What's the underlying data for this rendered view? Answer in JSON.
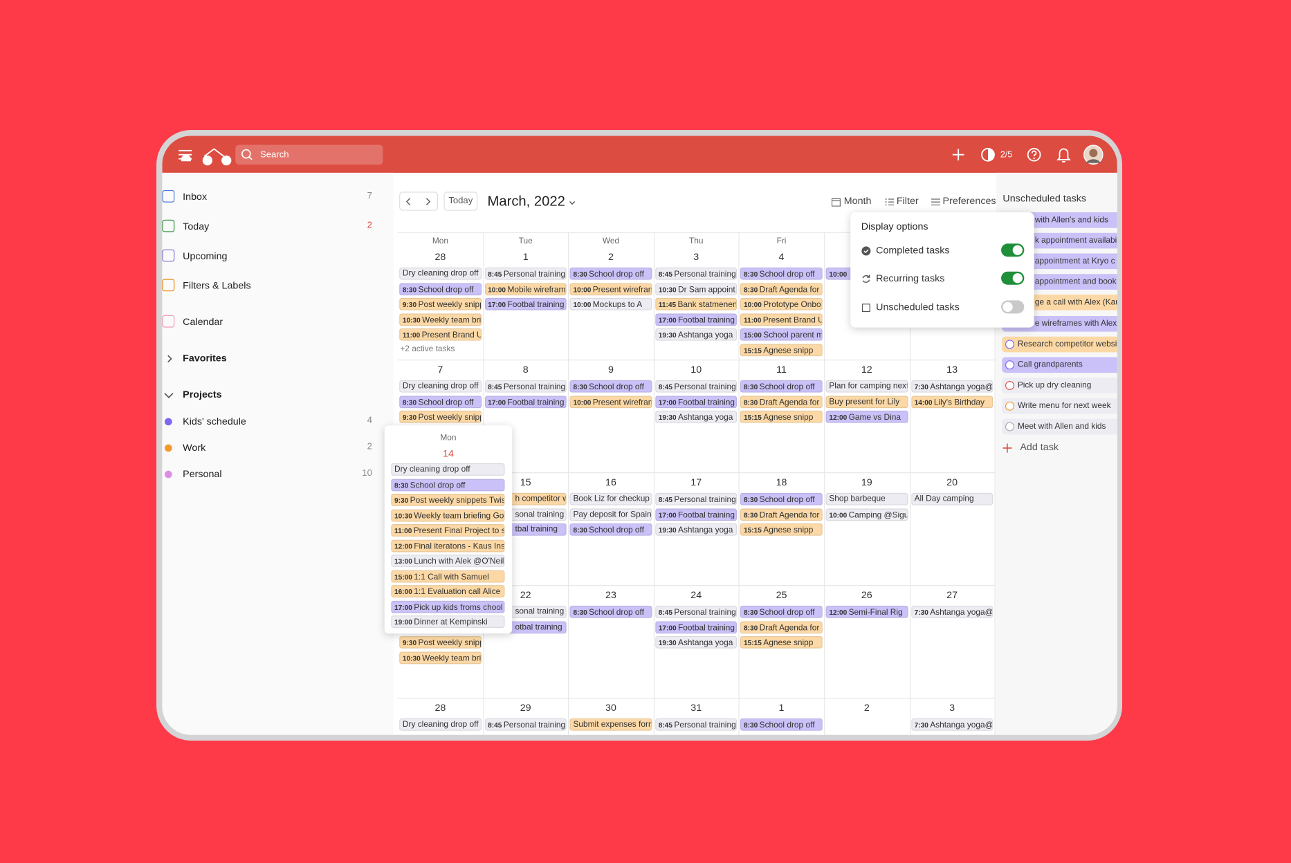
{
  "header": {
    "search_placeholder": "Search",
    "karma": "2/5"
  },
  "sidebar": {
    "nav": [
      {
        "label": "Inbox",
        "count": 7
      },
      {
        "label": "Today",
        "count": 2
      },
      {
        "label": "Upcoming"
      },
      {
        "label": "Filters & Labels"
      },
      {
        "label": "Calendar"
      }
    ],
    "favorites": "Favorites",
    "projects_title": "Projects",
    "projects": [
      {
        "name": "Kids' schedule",
        "count": 4,
        "color": "#7b68ee"
      },
      {
        "name": "Work",
        "count": 2,
        "color": "#f29a2e"
      },
      {
        "name": "Personal",
        "count": 10,
        "color": "#dc8ee6"
      }
    ]
  },
  "toolbar": {
    "today": "Today",
    "month_title": "March, 2022",
    "view": "Month",
    "filter": "Filter",
    "preferences": "Preferences"
  },
  "colors": {
    "gray": "#ececf2",
    "purple": "#c9c1f7",
    "orange": "#fbd8a5"
  },
  "calendar": {
    "weekdays": [
      "Mon",
      "Tue",
      "Wed",
      "Thu",
      "Fri",
      null,
      null
    ],
    "weeks": [
      {
        "days": [
          {
            "date": 28,
            "events": [
              {
                "title": "Dry cleaning drop off",
                "color": "gray"
              },
              {
                "time": "8:30",
                "title": "School drop off",
                "color": "purple"
              },
              {
                "time": "9:30",
                "title": "Post weekly snipp",
                "color": "orange"
              },
              {
                "time": "10:30",
                "title": "Weekly team bri",
                "color": "orange"
              },
              {
                "time": "11:00",
                "title": "Present Brand UI",
                "color": "orange"
              }
            ],
            "more": "+2 active tasks"
          },
          {
            "date": 1,
            "events": [
              {
                "time": "8:45",
                "title": "Personal training",
                "color": "gray"
              },
              {
                "time": "10:00",
                "title": "Mobile wirefram",
                "color": "orange"
              },
              {
                "time": "17:00",
                "title": "Footbal training",
                "color": "purple"
              }
            ]
          },
          {
            "date": 2,
            "events": [
              {
                "time": "8:30",
                "title": "School drop off",
                "color": "purple"
              },
              {
                "time": "10:00",
                "title": "Present wirefram",
                "color": "orange"
              },
              {
                "time": "10:00",
                "title": "Mockups to A",
                "color": "gray"
              }
            ]
          },
          {
            "date": 3,
            "events": [
              {
                "time": "8:45",
                "title": "Personal training",
                "color": "gray"
              },
              {
                "time": "10:30",
                "title": "Dr Sam appoint",
                "color": "gray"
              },
              {
                "time": "11:45",
                "title": "Bank statmenent",
                "color": "orange"
              },
              {
                "time": "17:00",
                "title": "Footbal training",
                "color": "purple"
              },
              {
                "time": "19:30",
                "title": "Ashtanga yoga",
                "color": "gray"
              }
            ]
          },
          {
            "date": 4,
            "events": [
              {
                "time": "8:30",
                "title": "School drop off",
                "color": "purple"
              },
              {
                "time": "8:30",
                "title": "Draft Agenda for",
                "color": "orange"
              },
              {
                "time": "10:00",
                "title": "Prototype Onbo",
                "color": "orange"
              },
              {
                "time": "11:00",
                "title": "Present Brand UI",
                "color": "orange"
              },
              {
                "time": "15:00",
                "title": "School parent m",
                "color": "purple"
              },
              {
                "time": "15:15",
                "title": "Agnese snipp",
                "color": "orange"
              }
            ]
          },
          {
            "date": null,
            "events": [
              {
                "time": "10:00",
                "color": "purple"
              }
            ]
          },
          {
            "date": null,
            "events": []
          }
        ]
      },
      {
        "days": [
          {
            "date": 7,
            "events": [
              {
                "title": "Dry cleaning drop off",
                "color": "gray"
              },
              {
                "time": "8:30",
                "title": "School drop off",
                "color": "purple"
              },
              {
                "time": "9:30",
                "title": "Post weekly snipp",
                "color": "orange"
              }
            ]
          },
          {
            "date": 8,
            "events": [
              {
                "time": "8:45",
                "title": "Personal training",
                "color": "gray"
              },
              {
                "time": "17:00",
                "title": "Footbal training",
                "color": "purple"
              }
            ]
          },
          {
            "date": 9,
            "events": [
              {
                "time": "8:30",
                "title": "School drop off",
                "color": "purple"
              },
              {
                "time": "10:00",
                "title": "Present wirefram",
                "color": "orange"
              }
            ]
          },
          {
            "date": 10,
            "events": [
              {
                "time": "8:45",
                "title": "Personal training",
                "color": "gray"
              },
              {
                "time": "17:00",
                "title": "Footbal training",
                "color": "purple"
              },
              {
                "time": "19:30",
                "title": "Ashtanga yoga",
                "color": "gray"
              }
            ]
          },
          {
            "date": 11,
            "events": [
              {
                "time": "8:30",
                "title": "School drop off",
                "color": "purple"
              },
              {
                "time": "8:30",
                "title": "Draft Agenda for",
                "color": "orange"
              },
              {
                "time": "15:15",
                "title": "Agnese snipp",
                "color": "orange"
              }
            ]
          },
          {
            "date": 12,
            "events": [
              {
                "title": "Plan for camping next",
                "color": "gray"
              },
              {
                "title": "Buy present for Lily",
                "color": "orange"
              },
              {
                "time": "12:00",
                "title": "Game vs Dina",
                "color": "purple"
              }
            ]
          },
          {
            "date": 13,
            "events": [
              {
                "time": "7:30",
                "title": "Ashtanga yoga@",
                "color": "gray"
              },
              {
                "time": "14:00",
                "title": "Lily's Birthday",
                "color": "orange"
              }
            ]
          }
        ]
      },
      {
        "days": [
          {
            "date": null,
            "events": []
          },
          {
            "date": 15,
            "events": [
              {
                "title": "h competitor w",
                "color": "orange"
              },
              {
                "title": "sonal training",
                "color": "gray"
              },
              {
                "title": "tbal training",
                "color": "purple"
              }
            ]
          },
          {
            "date": 16,
            "events": [
              {
                "title": "Book Liz for checkup",
                "color": "gray"
              },
              {
                "title": "Pay deposit for Spain",
                "color": "gray"
              },
              {
                "time": "8:30",
                "title": "School drop off",
                "color": "purple"
              }
            ]
          },
          {
            "date": 17,
            "events": [
              {
                "time": "8:45",
                "title": "Personal training",
                "color": "gray"
              },
              {
                "time": "17:00",
                "title": "Footbal training",
                "color": "purple"
              },
              {
                "time": "19:30",
                "title": "Ashtanga yoga",
                "color": "gray"
              }
            ]
          },
          {
            "date": 18,
            "events": [
              {
                "time": "8:30",
                "title": "School drop off",
                "color": "purple"
              },
              {
                "time": "8:30",
                "title": "Draft Agenda for",
                "color": "orange"
              },
              {
                "time": "15:15",
                "title": "Agnese snipp",
                "color": "orange"
              }
            ]
          },
          {
            "date": 19,
            "events": [
              {
                "title": "Shop barbeque",
                "color": "gray"
              },
              {
                "time": "10:00",
                "title": "Camping @Sigul",
                "color": "gray"
              }
            ]
          },
          {
            "date": 20,
            "events": [
              {
                "title": "All Day camping",
                "color": "gray"
              }
            ]
          }
        ]
      },
      {
        "days": [
          {
            "date": null,
            "events": [
              {
                "time": "9:30",
                "title": "Post weekly snipp",
                "color": "orange"
              },
              {
                "time": "10:30",
                "title": "Weekly team bri",
                "color": "orange"
              }
            ]
          },
          {
            "date": 22,
            "events": [
              {
                "title": "sonal training",
                "color": "gray"
              },
              {
                "title": "otbal training",
                "color": "purple"
              }
            ]
          },
          {
            "date": 23,
            "events": [
              {
                "time": "8:30",
                "title": "School drop off",
                "color": "purple"
              }
            ]
          },
          {
            "date": 24,
            "events": [
              {
                "time": "8:45",
                "title": "Personal training",
                "color": "gray"
              },
              {
                "time": "17:00",
                "title": "Footbal training",
                "color": "purple"
              },
              {
                "time": "19:30",
                "title": "Ashtanga yoga",
                "color": "gray"
              }
            ]
          },
          {
            "date": 25,
            "events": [
              {
                "time": "8:30",
                "title": "School drop off",
                "color": "purple"
              },
              {
                "time": "8:30",
                "title": "Draft Agenda for",
                "color": "orange"
              },
              {
                "time": "15:15",
                "title": "Agnese snipp",
                "color": "orange"
              }
            ]
          },
          {
            "date": 26,
            "events": [
              {
                "time": "12:00",
                "title": "Semi-Final Rig",
                "color": "purple"
              }
            ]
          },
          {
            "date": 27,
            "events": [
              {
                "time": "7:30",
                "title": "Ashtanga yoga@",
                "color": "gray"
              }
            ]
          }
        ]
      },
      {
        "days": [
          {
            "date": 28,
            "events": [
              {
                "title": "Dry cleaning drop off",
                "color": "gray"
              }
            ]
          },
          {
            "date": 29,
            "events": [
              {
                "time": "8:45",
                "title": "Personal training",
                "color": "gray"
              }
            ]
          },
          {
            "date": 30,
            "events": [
              {
                "title": "Submit expenses form",
                "color": "orange"
              }
            ]
          },
          {
            "date": 31,
            "events": [
              {
                "time": "8:45",
                "title": "Personal training",
                "color": "gray"
              }
            ]
          },
          {
            "date": 1,
            "events": [
              {
                "time": "8:30",
                "title": "School drop off",
                "color": "purple"
              }
            ]
          },
          {
            "date": 2,
            "events": []
          },
          {
            "date": 3,
            "events": [
              {
                "time": "7:30",
                "title": "Ashtanga yoga@",
                "color": "gray"
              }
            ]
          }
        ]
      }
    ]
  },
  "day_popup": {
    "weekday": "Mon",
    "date": 14,
    "events": [
      {
        "title": "Dry cleaning drop off",
        "color": "gray"
      },
      {
        "time": "8:30",
        "title": "School drop off",
        "color": "purple"
      },
      {
        "time": "9:30",
        "title": "Post weekly snippets Twist",
        "color": "orange"
      },
      {
        "time": "10:30",
        "title": "Weekly team briefing Goo",
        "color": "orange"
      },
      {
        "time": "11:00",
        "title": "Present Final Project to ste",
        "color": "orange"
      },
      {
        "time": "12:00",
        "title": "Final iteratons - Kaus Insur",
        "color": "orange"
      },
      {
        "time": "13:00",
        "title": "Lunch with Alek @O'Neils",
        "color": "gray"
      },
      {
        "time": "15:00",
        "title": "1:1 Call with Samuel",
        "color": "orange"
      },
      {
        "time": "16:00",
        "title": "1:1 Evaluation call Alice",
        "color": "orange"
      },
      {
        "time": "17:00",
        "title": "Pick up kids froms chool",
        "color": "purple"
      },
      {
        "time": "19:00",
        "title": "Dinner at Kempinski",
        "color": "gray"
      }
    ]
  },
  "display_options": {
    "title": "Display options",
    "options": [
      {
        "label": "Completed tasks",
        "enabled": true
      },
      {
        "label": "Recurring tasks",
        "enabled": true
      },
      {
        "label": "Unscheduled tasks",
        "enabled": false
      }
    ]
  },
  "unscheduled": {
    "title": "Unscheduled tasks",
    "tasks": [
      {
        "title": "with Allen's and kids",
        "color": "purple"
      },
      {
        "title": "k appointment availabi",
        "color": "purple"
      },
      {
        "title": "appointment at Kryo c",
        "color": "purple"
      },
      {
        "title": "appointment and book",
        "color": "purple"
      },
      {
        "title": "ge a call with Alex (Kau",
        "color": "orange"
      },
      {
        "title": "e wireframes with Alex (",
        "color": "purple"
      },
      {
        "title": "Research competitor website",
        "color": "orange"
      },
      {
        "title": "Call grandparents",
        "color": "purple"
      },
      {
        "title": "Pick up dry cleaning",
        "color": "gray"
      },
      {
        "title": "Write menu for next week",
        "color": "gray"
      },
      {
        "title": "Meet with Allen and kids",
        "color": "gray"
      }
    ],
    "add": "Add task"
  }
}
